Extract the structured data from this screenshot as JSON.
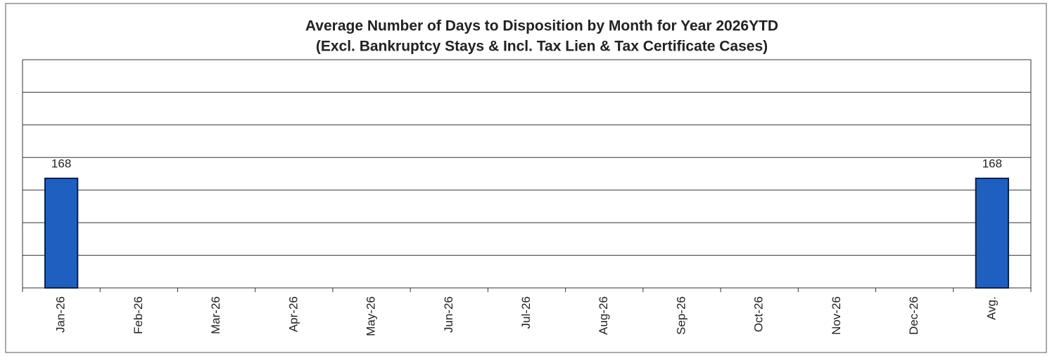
{
  "chart_data": {
    "type": "bar",
    "title": "Average Number of Days to Disposition  by Month for Year 2026YTD",
    "subtitle": "(Excl. Bankruptcy  Stays & Incl. Tax Lien & Tax Certificate Cases)",
    "categories": [
      "Jan-26",
      "Feb-26",
      "Mar-26",
      "Apr-26",
      "May-26",
      "Jun-26",
      "Jul-26",
      "Aug-26",
      "Sep-26",
      "Oct-26",
      "Nov-26",
      "Dec-26",
      "Avg."
    ],
    "values": [
      168,
      null,
      null,
      null,
      null,
      null,
      null,
      null,
      null,
      null,
      null,
      null,
      168
    ],
    "color": "#1f5fbf",
    "ylim": [
      0,
      350
    ],
    "yticks": [
      0,
      50,
      100,
      150,
      200,
      250,
      300,
      350
    ],
    "grid": true
  }
}
